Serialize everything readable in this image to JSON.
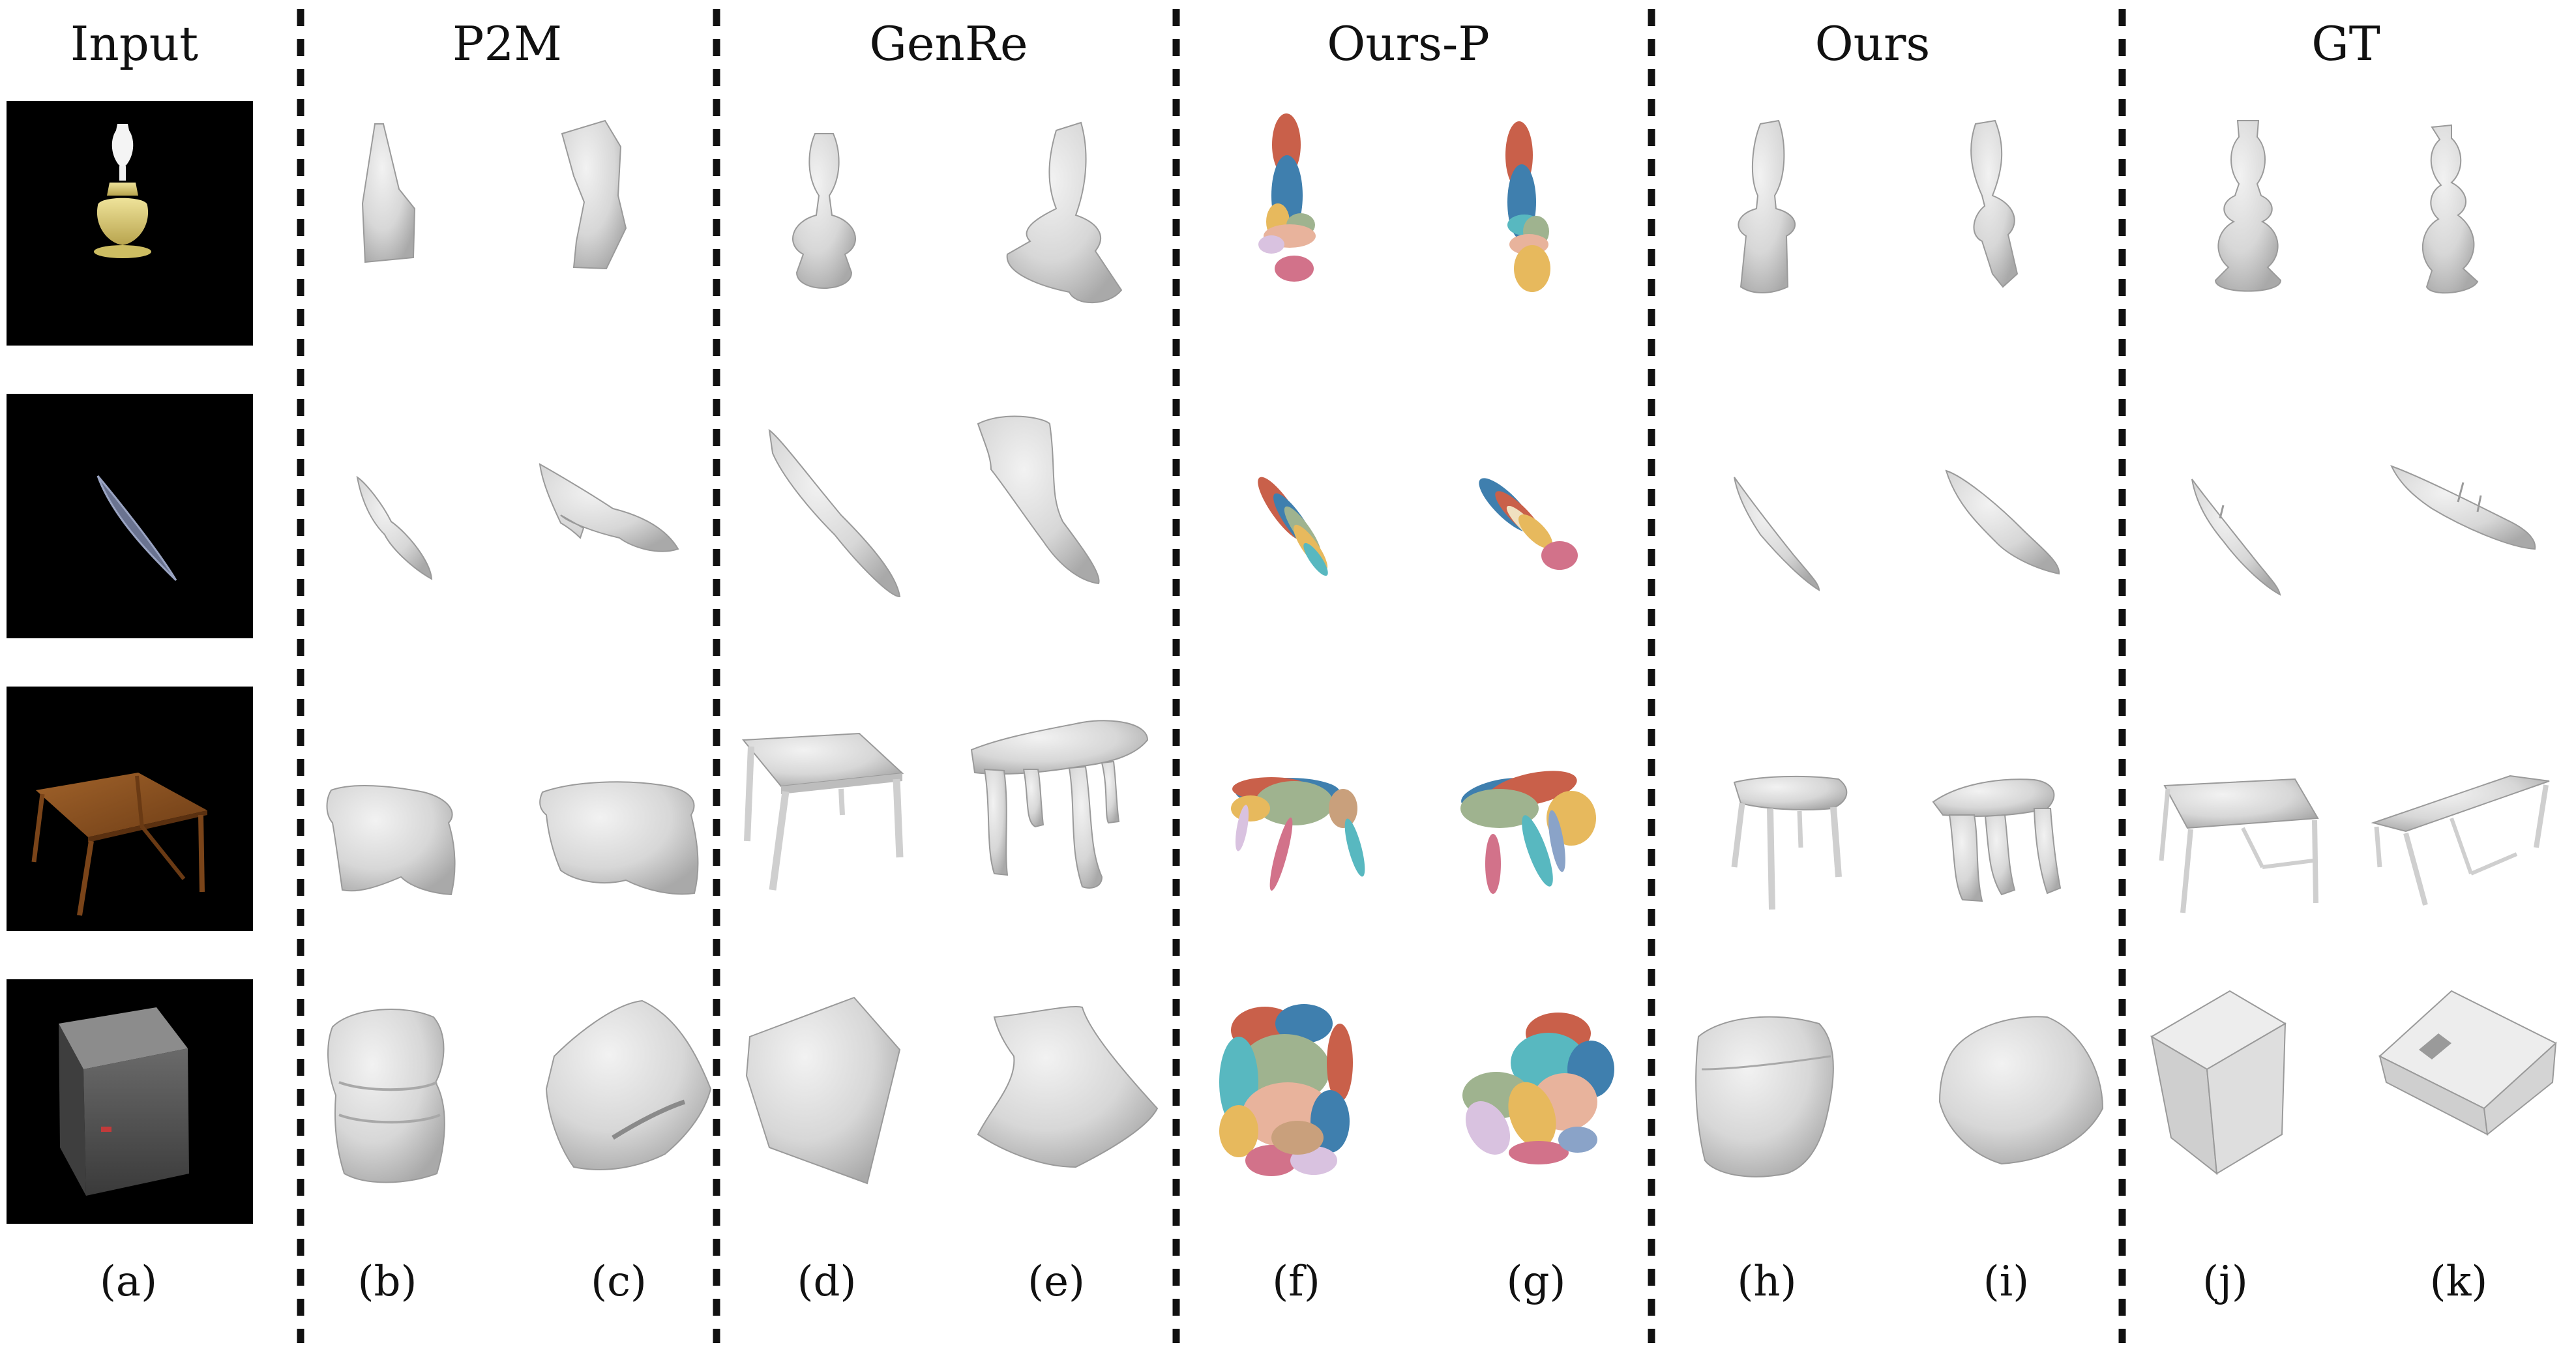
{
  "figure": {
    "column_headers": {
      "input": "Input",
      "p2m": "P2M",
      "genre": "GenRe",
      "ours_p": "Ours-P",
      "ours": "Ours",
      "gt": "GT"
    },
    "captions": {
      "a": "(a)",
      "b": "(b)",
      "c": "(c)",
      "d": "(d)",
      "e": "(e)",
      "f": "(f)",
      "g": "(g)",
      "h": "(h)",
      "i": "(i)",
      "j": "(j)",
      "k": "(k)"
    },
    "rows": [
      "lamp",
      "boat",
      "table",
      "cabinet"
    ],
    "colors": {
      "mesh": "#dedede",
      "mesh_shadow": "#b9b9b9",
      "mesh_edge": "#9a9a9a",
      "input_background": "#000000",
      "divider": "#111111",
      "primitive_palette": [
        "#c9604a",
        "#3f7fae",
        "#e7b95d",
        "#9fb38f",
        "#e8b39c",
        "#d2728a",
        "#d9c2e0",
        "#58b8c0",
        "#8aa3c8",
        "#c9a07c"
      ]
    }
  }
}
